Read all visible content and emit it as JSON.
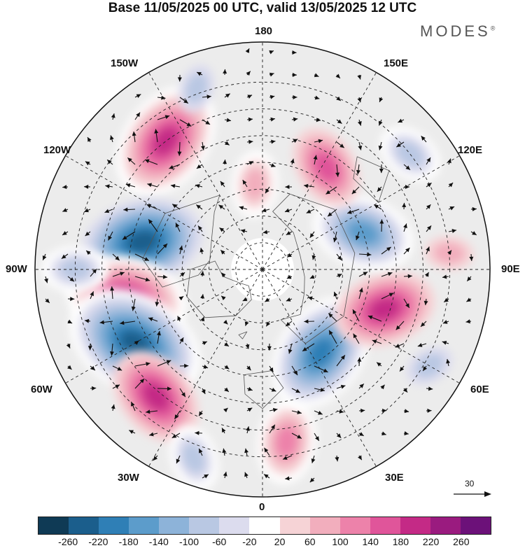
{
  "title": "Base 11/05/2025 00 UTC, valid 13/05/2025 12 UTC",
  "brand": "MODES",
  "brand_mark": "®",
  "longitude_labels": {
    "lon_180": "180",
    "lon_150w": "150W",
    "lon_150e": "150E",
    "lon_120w": "120W",
    "lon_120e": "120E",
    "lon_90w": "90W",
    "lon_90e": "90E",
    "lon_60w": "60W",
    "lon_60e": "60E",
    "lon_30w": "30W",
    "lon_30e": "30E",
    "lon_0": "0"
  },
  "reference_vector": {
    "label": "30"
  },
  "colorbar": {
    "colors": [
      "#0f3a55",
      "#1b5e8c",
      "#2f7fb6",
      "#5c9ccb",
      "#8db3d9",
      "#b9c8e3",
      "#dcdcee",
      "#ffffff",
      "#f6d3d6",
      "#f2aebd",
      "#ed82aa",
      "#e0559a",
      "#c42a86",
      "#9a1b7f",
      "#6c1179"
    ],
    "ticks": [
      "-260",
      "-220",
      "-180",
      "-140",
      "-100",
      "-60",
      "-20",
      "20",
      "60",
      "100",
      "140",
      "180",
      "220",
      "260"
    ]
  },
  "anomalies": [
    {
      "lon": -143,
      "lat": 30,
      "value": 210
    },
    {
      "lon": -103,
      "lat": 44,
      "value": -230
    },
    {
      "lon": -78,
      "lat": 38,
      "value": 200
    },
    {
      "lon": -60,
      "lat": 35,
      "value": -240
    },
    {
      "lon": -40,
      "lat": 28,
      "value": 180
    },
    {
      "lon": 8,
      "lat": 25,
      "value": 130
    },
    {
      "lon": 35,
      "lat": 52,
      "value": -220
    },
    {
      "lon": 72,
      "lat": 42,
      "value": 190
    },
    {
      "lon": 110,
      "lat": 50,
      "value": -180
    },
    {
      "lon": 148,
      "lat": 45,
      "value": 150
    },
    {
      "lon": -175,
      "lat": 58,
      "value": 80
    },
    {
      "lon": 128,
      "lat": 20,
      "value": -90
    },
    {
      "lon": -160,
      "lat": 18,
      "value": -70
    },
    {
      "lon": -90,
      "lat": 20,
      "value": -80
    },
    {
      "lon": 95,
      "lat": 20,
      "value": 70
    },
    {
      "lon": 60,
      "lat": 18,
      "value": -70
    },
    {
      "lon": -20,
      "lat": 15,
      "value": -80
    }
  ]
}
